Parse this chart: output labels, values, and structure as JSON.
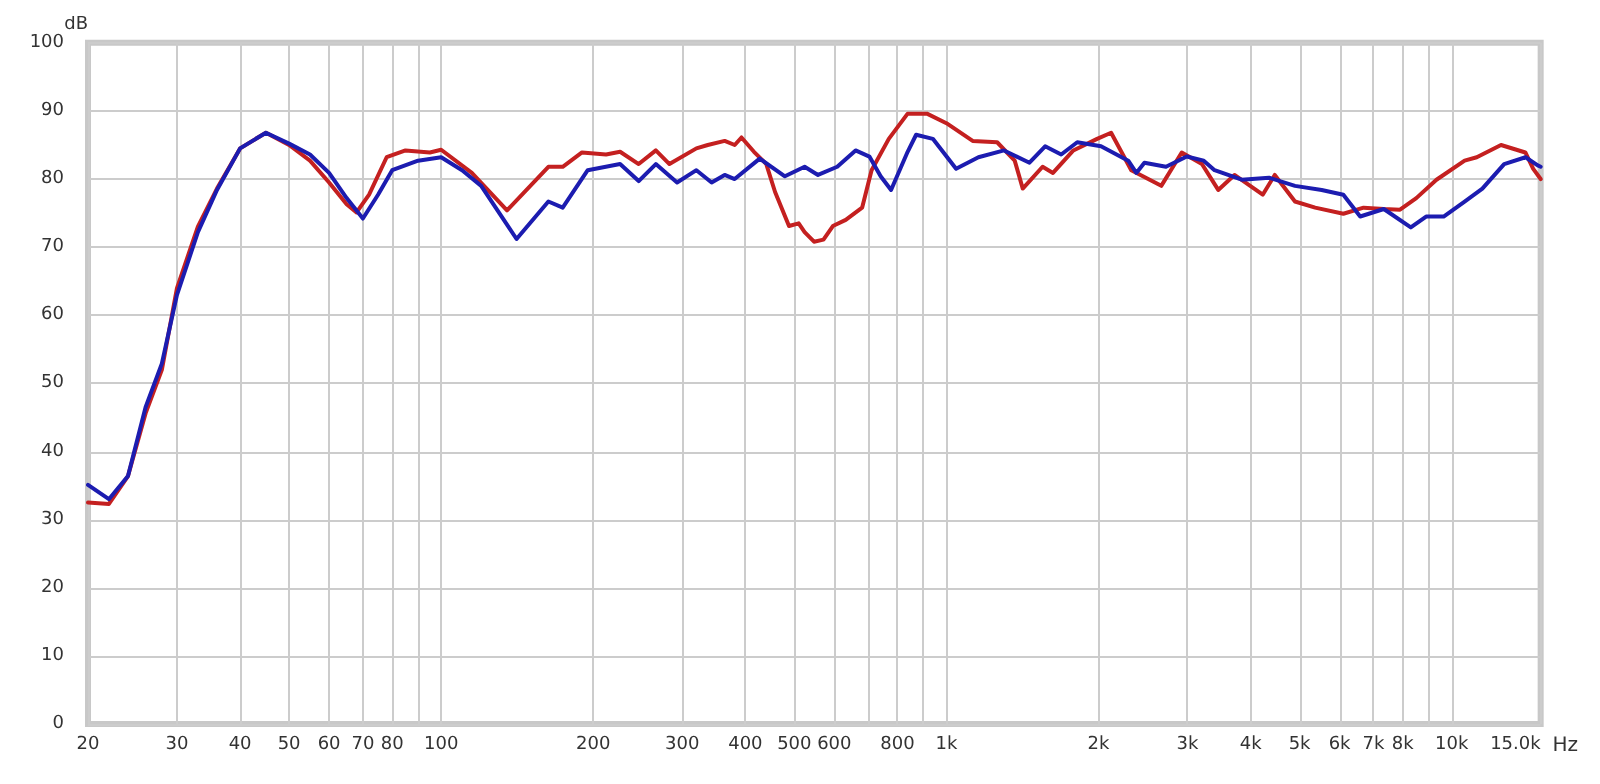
{
  "chart_data": {
    "type": "line",
    "xlabel": "Hz",
    "ylabel": "dB",
    "log": "x",
    "grid": true,
    "marker": "none",
    "line_style": "solid",
    "xlim": [
      20,
      15000
    ],
    "ylim": [
      0,
      100
    ],
    "xticks": [
      20,
      30,
      40,
      50,
      60,
      70,
      80,
      {
        "value": 90,
        "label": null
      },
      100,
      200,
      300,
      400,
      500,
      600,
      {
        "value": 700,
        "label": null
      },
      800,
      {
        "value": 900,
        "label": null
      },
      {
        "value": 1000,
        "label": "1k"
      },
      {
        "value": 2000,
        "label": "2k"
      },
      {
        "value": 3000,
        "label": "3k"
      },
      {
        "value": 4000,
        "label": "4k"
      },
      {
        "value": 5000,
        "label": "5k"
      },
      {
        "value": 6000,
        "label": "6k"
      },
      {
        "value": 7000,
        "label": "7k"
      },
      {
        "value": 8000,
        "label": "8k"
      },
      {
        "value": 9000,
        "label": null
      },
      {
        "value": 10000,
        "label": "10k"
      },
      {
        "value": 15000,
        "label": "15.0k"
      }
    ],
    "yticks": [
      0,
      10,
      20,
      30,
      40,
      50,
      60,
      70,
      80,
      90,
      100
    ],
    "series": [
      {
        "color": "#c42020",
        "x": [
          20,
          22,
          24,
          26,
          28,
          30,
          33,
          36,
          40,
          45,
          50,
          55,
          60,
          65,
          68,
          72,
          78,
          85,
          95,
          100,
          115,
          135,
          163,
          174,
          190,
          212,
          226,
          246,
          266,
          283,
          320,
          337,
          364,
          381,
          393,
          416,
          440,
          458,
          488,
          510,
          524,
          547,
          571,
          596,
          632,
          681,
          711,
          769,
          838,
          915,
          1000,
          1127,
          1260,
          1365,
          1416,
          1550,
          1625,
          1783,
          1987,
          2118,
          2322,
          2662,
          2922,
          3204,
          3451,
          3716,
          4227,
          4465,
          4896,
          5368,
          6103,
          6693,
          7339,
          7902,
          8510,
          9330,
          10607,
          11210,
          12520,
          13990,
          14500,
          15000
        ],
        "values": [
          32.5,
          32.3,
          36.4,
          45.6,
          52,
          64,
          73,
          78.6,
          84.5,
          86.8,
          85,
          82.7,
          79.5,
          76.3,
          75.1,
          77.7,
          83.2,
          84.2,
          83.9,
          84.3,
          80.9,
          75.4,
          81.8,
          81.8,
          83.9,
          83.6,
          84,
          82.2,
          84.2,
          82.2,
          84.5,
          85,
          85.6,
          85,
          86.1,
          84,
          82.2,
          78.1,
          73.1,
          73.5,
          72.2,
          70.8,
          71.1,
          73.1,
          74,
          75.8,
          81.3,
          85.9,
          89.6,
          89.6,
          88.2,
          85.6,
          85.4,
          82.7,
          78.6,
          81.8,
          80.9,
          84.2,
          85.9,
          86.8,
          81.3,
          79,
          83.9,
          82.2,
          78.4,
          80.6,
          77.7,
          80.6,
          76.7,
          75.8,
          74.9,
          75.8,
          75.6,
          75.5,
          77.2,
          79.9,
          82.7,
          83.2,
          85,
          83.9,
          81.5,
          80
        ]
      },
      {
        "color": "#1c1cb0",
        "x": [
          20,
          22,
          24,
          26,
          28,
          30,
          33,
          36,
          40,
          45,
          50,
          55,
          60,
          65,
          70,
          75,
          80,
          90,
          100,
          110,
          120,
          141,
          163,
          174,
          195,
          226,
          246,
          266,
          293,
          320,
          343,
          364,
          381,
          427,
          479,
          524,
          557,
          608,
          661,
          704,
          741,
          777,
          838,
          871,
          940,
          1045,
          1157,
          1300,
          1460,
          1568,
          1687,
          1815,
          2023,
          2290,
          2376,
          2465,
          2720,
          2990,
          3230,
          3394,
          3840,
          4350,
          4896,
          5530,
          6103,
          6590,
          7339,
          8300,
          8900,
          9640,
          10607,
          11500,
          12700,
          14000,
          14800,
          15000
        ],
        "values": [
          35.1,
          33,
          36.4,
          46.5,
          52.9,
          63,
          72.2,
          78.4,
          84.5,
          86.8,
          85.2,
          83.6,
          80.9,
          77.2,
          74.2,
          77.7,
          81.3,
          82.7,
          83.2,
          81.3,
          79,
          71.2,
          76.7,
          75.8,
          81.3,
          82.2,
          79.7,
          82.2,
          79.5,
          81.3,
          79.5,
          80.6,
          80,
          83,
          80.4,
          81.8,
          80.6,
          81.8,
          84.2,
          83.3,
          80.4,
          78.4,
          84,
          86.5,
          85.9,
          81.5,
          83.2,
          84.2,
          82.4,
          84.8,
          83.6,
          85.4,
          84.8,
          82.7,
          80.9,
          82.4,
          81.8,
          83.3,
          82.7,
          81.3,
          79.9,
          80.2,
          79,
          78.4,
          77.7,
          74.5,
          75.6,
          72.9,
          74.5,
          74.5,
          76.7,
          78.6,
          82.2,
          83.2,
          82,
          81.8
        ]
      }
    ]
  }
}
